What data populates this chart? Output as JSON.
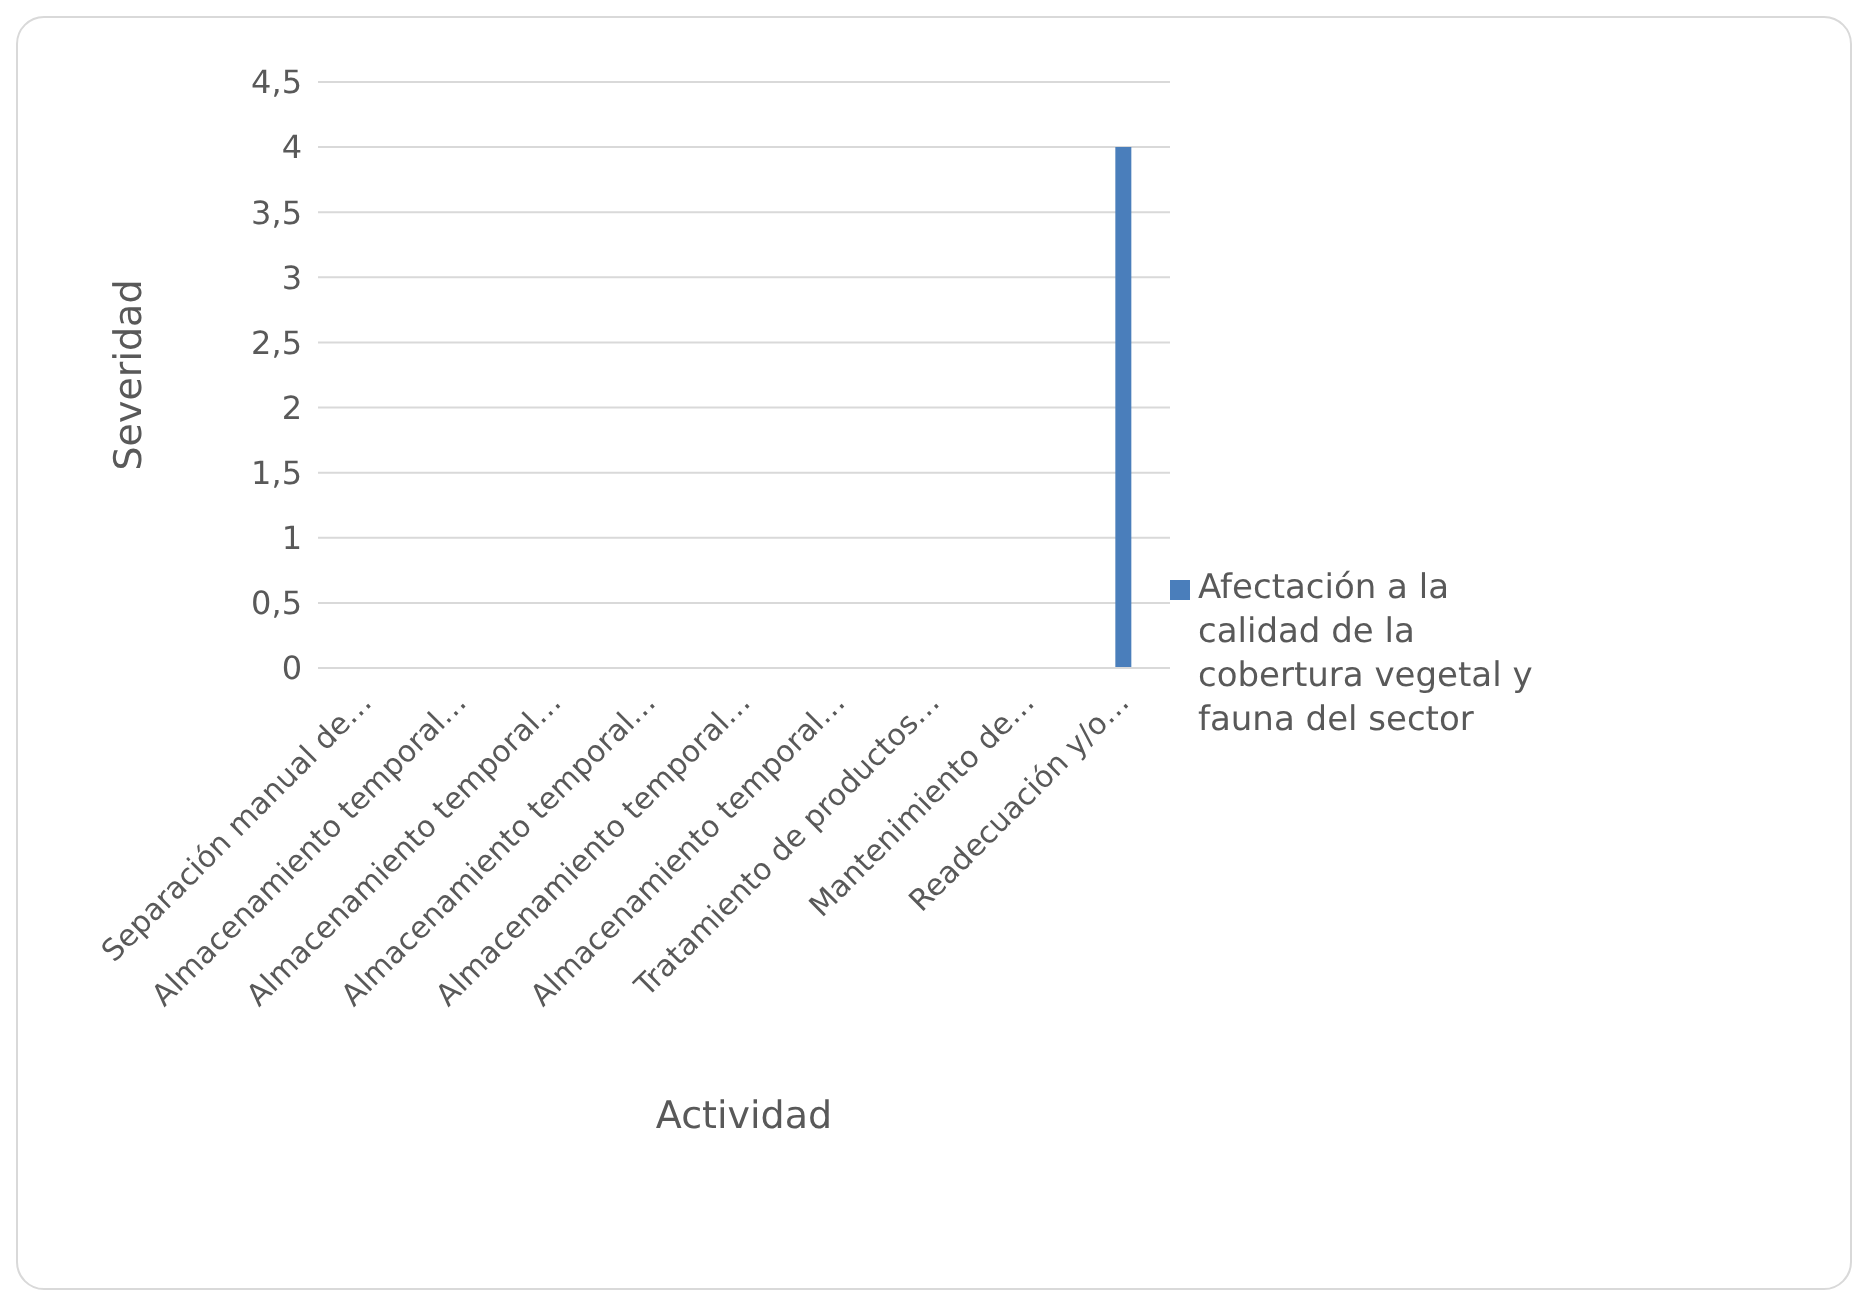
{
  "chart_data": {
    "type": "bar",
    "xlabel": "Actividad",
    "ylabel": "Severidad",
    "categories": [
      "Separación manual de…",
      "Almacenamiento temporal…",
      "Almacenamiento temporal…",
      "Almacenamiento temporal…",
      "Almacenamiento temporal…",
      "Almacenamiento temporal…",
      "Tratamiento de productos…",
      "Mantenimiento de…",
      "Readecuación y/o…"
    ],
    "series": [
      {
        "name": "Afectación a la calidad de la cobertura vegetal y fauna del sector",
        "color": "#4a7ebb",
        "values": [
          0,
          0,
          0,
          0,
          0,
          0,
          0,
          0,
          4
        ]
      }
    ],
    "ylim": [
      0,
      4.5
    ],
    "yticks": [
      0,
      {
        "value": 0.5,
        "label": "0,5"
      },
      1,
      {
        "value": 1.5,
        "label": "1,5"
      },
      2,
      {
        "value": 2.5,
        "label": "2,5"
      },
      3,
      {
        "value": 3.5,
        "label": "3,5"
      },
      4,
      {
        "value": 4.5,
        "label": "4,5"
      }
    ],
    "grid": "y",
    "legend": "right"
  }
}
